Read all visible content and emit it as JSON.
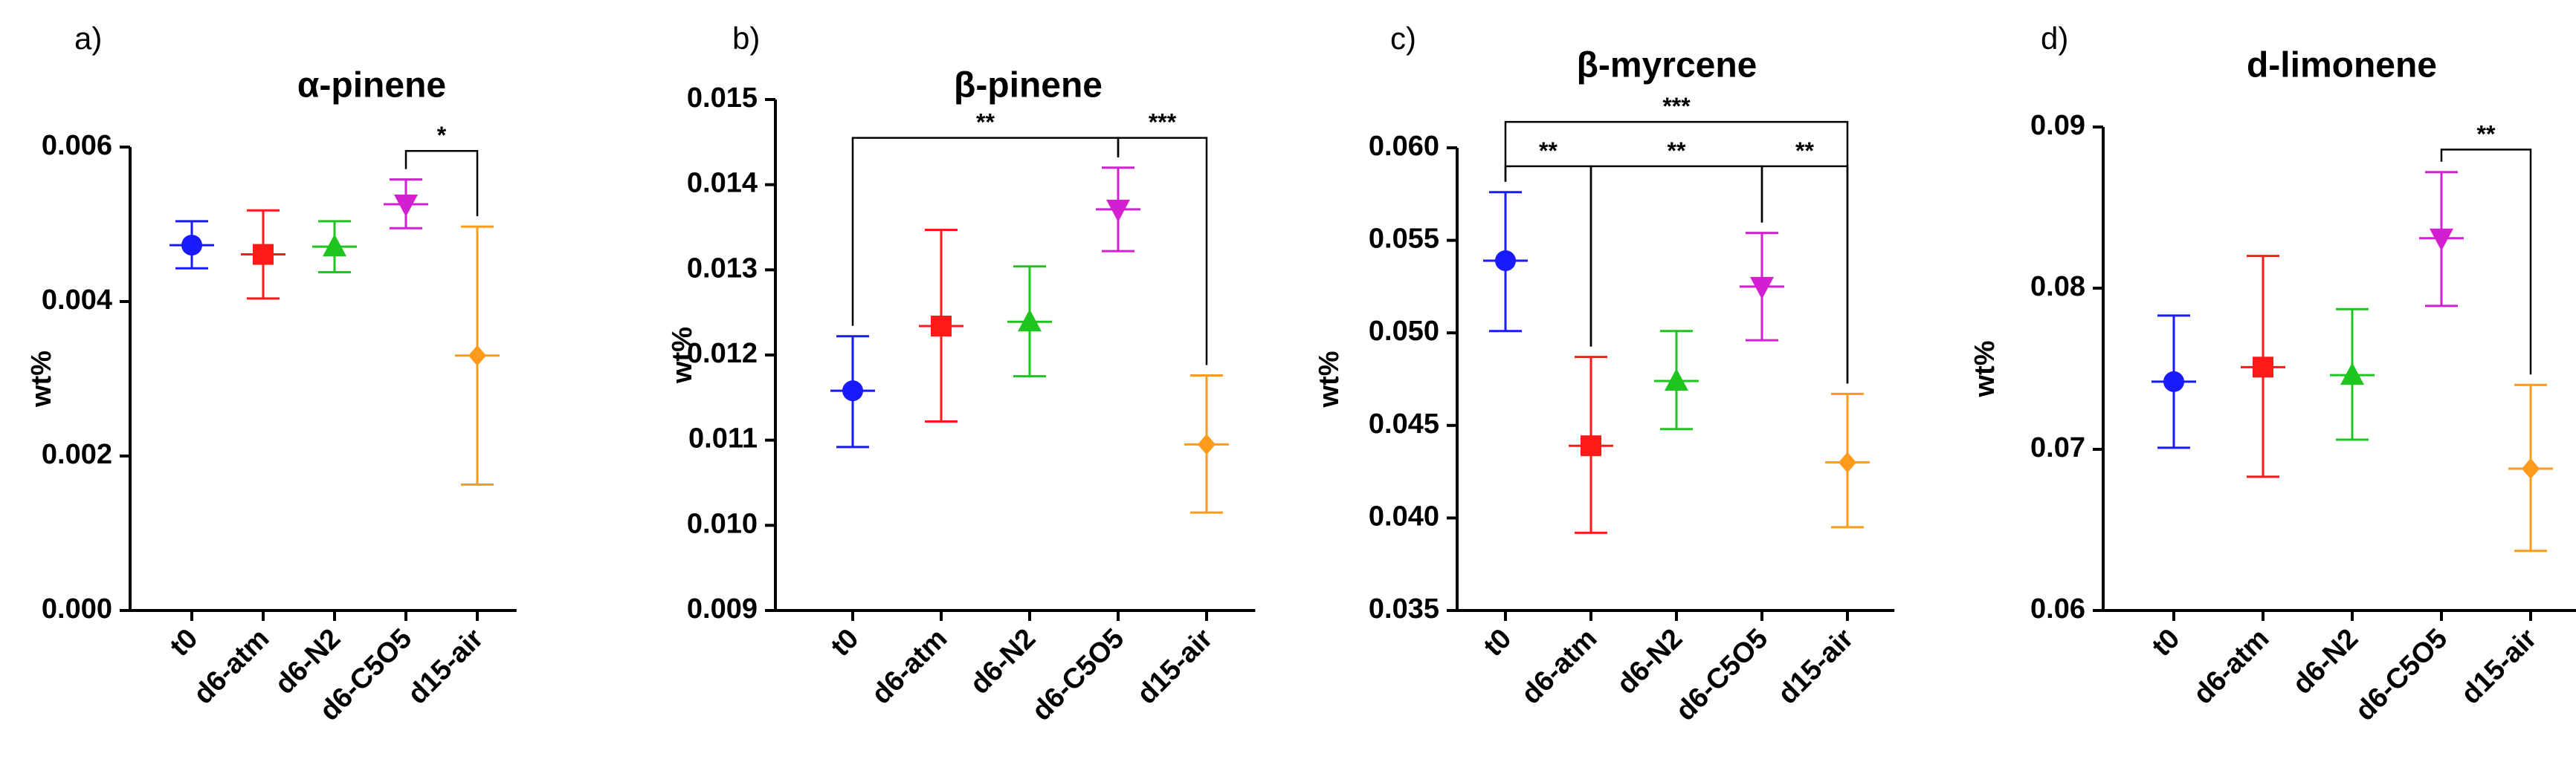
{
  "figure": {
    "panels": [
      "a)",
      "b)",
      "c)",
      "d)"
    ]
  },
  "chart_data": [
    {
      "type": "scatter",
      "panel": "a)",
      "title": "α-pinene",
      "ylabel": "wt%",
      "xlabel": "",
      "ylim": [
        0,
        0.006
      ],
      "yticks": [
        0,
        0.002,
        0.004,
        0.006
      ],
      "ytick_labels": [
        "0.000",
        "0.002",
        "0.004",
        "0.006"
      ],
      "categories": [
        "t0",
        "d6-atm",
        "d6-N2",
        "d6-C5O5",
        "d15-air"
      ],
      "means": [
        0.00473,
        0.00461,
        0.00471,
        0.00526,
        0.0033
      ],
      "err_low": [
        0.00443,
        0.00404,
        0.00438,
        0.00495,
        0.00163
      ],
      "err_high": [
        0.00504,
        0.00518,
        0.00504,
        0.00558,
        0.00497
      ],
      "markers": [
        "circle",
        "square",
        "triangle-up",
        "triangle-down",
        "diamond"
      ],
      "colors": [
        "#1a1aff",
        "#ff1a1a",
        "#1fc41f",
        "#d21fd2",
        "#ff9a1a"
      ],
      "significance": [
        {
          "from": 3,
          "to": 4,
          "label": "*",
          "y": 0.00595
        }
      ]
    },
    {
      "type": "scatter",
      "panel": "b)",
      "title": "β-pinene",
      "ylabel": "wt%",
      "xlabel": "",
      "ylim": [
        0.009,
        0.015
      ],
      "yticks": [
        0.009,
        0.01,
        0.011,
        0.012,
        0.013,
        0.014,
        0.015
      ],
      "ytick_labels": [
        "0.009",
        "0.010",
        "0.011",
        "0.012",
        "0.013",
        "0.014",
        "0.015"
      ],
      "categories": [
        "t0",
        "d6-atm",
        "d6-N2",
        "d6-C5O5",
        "d15-air"
      ],
      "means": [
        0.01158,
        0.01234,
        0.01239,
        0.01371,
        0.01095
      ],
      "err_low": [
        0.01092,
        0.01122,
        0.01175,
        0.01322,
        0.01015
      ],
      "err_high": [
        0.01222,
        0.01347,
        0.01304,
        0.0142,
        0.01176
      ],
      "markers": [
        "circle",
        "square",
        "triangle-up",
        "triangle-down",
        "diamond"
      ],
      "colors": [
        "#1a1aff",
        "#ff1a1a",
        "#1fc41f",
        "#d21fd2",
        "#ff9a1a"
      ],
      "significance": [
        {
          "from": 0,
          "to": 3,
          "label": "**",
          "y": 0.01455
        },
        {
          "from": 3,
          "to": 4,
          "label": "***",
          "y": 0.01455
        }
      ]
    },
    {
      "type": "scatter",
      "panel": "c)",
      "title": "β-myrcene",
      "ylabel": "wt%",
      "xlabel": "",
      "ylim": [
        0.035,
        0.06
      ],
      "yticks": [
        0.035,
        0.04,
        0.045,
        0.05,
        0.055,
        0.06
      ],
      "ytick_labels": [
        "0.035",
        "0.040",
        "0.045",
        "0.050",
        "0.055",
        "0.060"
      ],
      "categories": [
        "t0",
        "d6-atm",
        "d6-N2",
        "d6-C5O5",
        "d15-air"
      ],
      "means": [
        0.0539,
        0.0439,
        0.0474,
        0.0525,
        0.043
      ],
      "err_low": [
        0.0501,
        0.0392,
        0.0448,
        0.0496,
        0.0395
      ],
      "err_high": [
        0.0576,
        0.0487,
        0.0501,
        0.0554,
        0.0467
      ],
      "markers": [
        "circle",
        "square",
        "triangle-up",
        "triangle-down",
        "diamond"
      ],
      "colors": [
        "#1a1aff",
        "#ff1a1a",
        "#1fc41f",
        "#d21fd2",
        "#ff9a1a"
      ],
      "significance": [
        {
          "from": 0,
          "to": 4,
          "label": "***",
          "y": 0.0614
        },
        {
          "from": 0,
          "to": 1,
          "label": "**",
          "y": 0.059
        },
        {
          "from": 1,
          "to": 3,
          "label": "**",
          "y": 0.059
        },
        {
          "from": 3,
          "to": 4,
          "label": "**",
          "y": 0.059
        }
      ]
    },
    {
      "type": "scatter",
      "panel": "d)",
      "title": "d-limonene",
      "ylabel": "wt%",
      "xlabel": "",
      "ylim": [
        0.06,
        0.09
      ],
      "yticks": [
        0.06,
        0.07,
        0.08,
        0.09
      ],
      "ytick_labels": [
        "0.06",
        "0.07",
        "0.08",
        "0.09"
      ],
      "categories": [
        "t0",
        "d6-atm",
        "d6-N2",
        "d6-C5O5",
        "d15-air"
      ],
      "means": [
        0.0742,
        0.0751,
        0.0746,
        0.0831,
        0.0688
      ],
      "err_low": [
        0.0701,
        0.0683,
        0.0706,
        0.0789,
        0.0637
      ],
      "err_high": [
        0.0783,
        0.082,
        0.0787,
        0.0872,
        0.074
      ],
      "markers": [
        "circle",
        "square",
        "triangle-up",
        "triangle-down",
        "diamond"
      ],
      "colors": [
        "#1a1aff",
        "#ff1a1a",
        "#1fc41f",
        "#d21fd2",
        "#ff9a1a"
      ],
      "significance": [
        {
          "from": 3,
          "to": 4,
          "label": "**",
          "y": 0.0886
        }
      ]
    }
  ]
}
